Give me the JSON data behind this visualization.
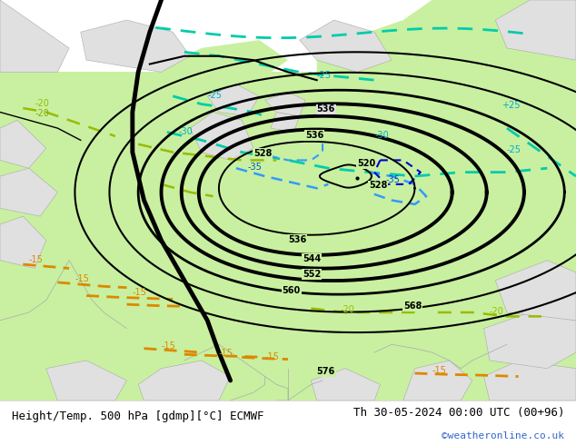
{
  "title_left": "Height/Temp. 500 hPa [gdmp][°C] ECMWF",
  "title_right": "Th 30-05-2024 00:00 UTC (00+96)",
  "credit": "©weatheronline.co.uk",
  "bg_color": "#e0e0e0",
  "land_color": "#c8f0a0",
  "title_fontsize": 9,
  "credit_fontsize": 8,
  "credit_color": "#3366cc"
}
